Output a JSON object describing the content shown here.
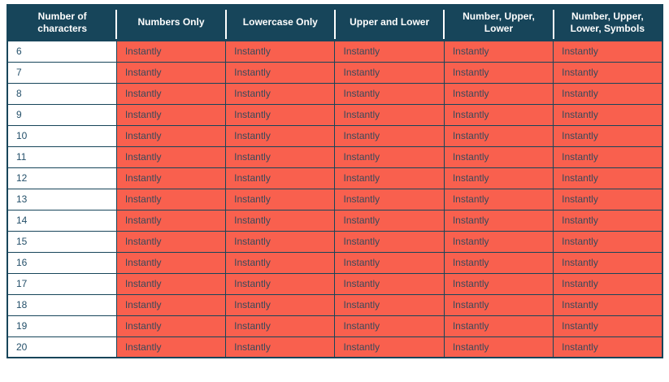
{
  "colors": {
    "navy": "#17455a",
    "red": "#f9604e",
    "header_text": "#ffffff",
    "num_text": "#24506a",
    "time_text": "#39495a",
    "page_bg": "#ffffff"
  },
  "chart_data": {
    "type": "table",
    "columns": [
      "Number of characters",
      "Numbers Only",
      "Lowercase Only",
      "Upper and Lower",
      "Number, Upper, Lower",
      "Number, Upper, Lower, Symbols"
    ],
    "rows": [
      [
        "6",
        "Instantly",
        "Instantly",
        "Instantly",
        "Instantly",
        "Instantly"
      ],
      [
        "7",
        "Instantly",
        "Instantly",
        "Instantly",
        "Instantly",
        "Instantly"
      ],
      [
        "8",
        "Instantly",
        "Instantly",
        "Instantly",
        "Instantly",
        "Instantly"
      ],
      [
        "9",
        "Instantly",
        "Instantly",
        "Instantly",
        "Instantly",
        "Instantly"
      ],
      [
        "10",
        "Instantly",
        "Instantly",
        "Instantly",
        "Instantly",
        "Instantly"
      ],
      [
        "11",
        "Instantly",
        "Instantly",
        "Instantly",
        "Instantly",
        "Instantly"
      ],
      [
        "12",
        "Instantly",
        "Instantly",
        "Instantly",
        "Instantly",
        "Instantly"
      ],
      [
        "13",
        "Instantly",
        "Instantly",
        "Instantly",
        "Instantly",
        "Instantly"
      ],
      [
        "14",
        "Instantly",
        "Instantly",
        "Instantly",
        "Instantly",
        "Instantly"
      ],
      [
        "15",
        "Instantly",
        "Instantly",
        "Instantly",
        "Instantly",
        "Instantly"
      ],
      [
        "16",
        "Instantly",
        "Instantly",
        "Instantly",
        "Instantly",
        "Instantly"
      ],
      [
        "17",
        "Instantly",
        "Instantly",
        "Instantly",
        "Instantly",
        "Instantly"
      ],
      [
        "18",
        "Instantly",
        "Instantly",
        "Instantly",
        "Instantly",
        "Instantly"
      ],
      [
        "19",
        "Instantly",
        "Instantly",
        "Instantly",
        "Instantly",
        "Instantly"
      ],
      [
        "20",
        "Instantly",
        "Instantly",
        "Instantly",
        "Instantly",
        "Instantly"
      ]
    ],
    "legend": "off",
    "grid": "cell-borders"
  }
}
